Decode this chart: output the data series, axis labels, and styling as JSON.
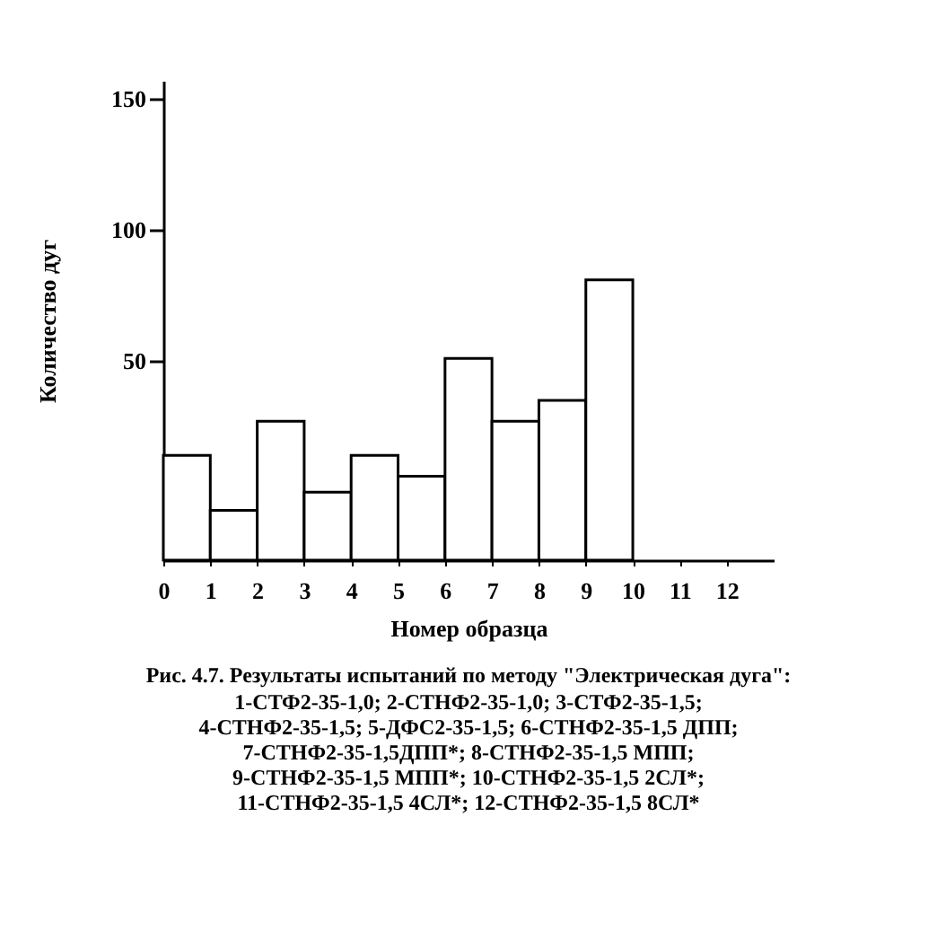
{
  "chart_data": {
    "type": "bar",
    "title": "Рис. 4.7. Результаты испытаний по методу \"Электрическая дуга\":",
    "annotations": [
      "1-СТФ2-35-1,0; 2-СТНФ2-35-1,0; 3-СТФ2-35-1,5;",
      "4-СТНФ2-35-1,5; 5-ДФС2-35-1,5; 6-СТНФ2-35-1,5 ДПП;",
      "7-СТНФ2-35-1,5ДПП*; 8-СТНФ2-35-1,5 МПП;",
      "9-СТНФ2-35-1,5 МПП*; 10-СТНФ2-35-1,5 2СЛ*;",
      "11-СТНФ2-35-1,5 4СЛ*; 12-СТНФ2-35-1,5 8СЛ*"
    ],
    "xlabel": "Номер образца",
    "ylabel": "Количество дуг",
    "x": [
      0.5,
      1.5,
      2.5,
      3.5,
      4.5,
      5.5,
      6.5,
      7.5,
      8.5,
      9.5
    ],
    "base": [
      -26,
      -26,
      -26,
      -26,
      -26,
      -26,
      -26,
      -26,
      -26,
      -26
    ],
    "values": [
      40,
      19,
      53,
      26,
      40,
      32,
      77,
      53,
      61,
      107
    ],
    "color": "#ffffff",
    "xlim": [
      0,
      13
    ],
    "xticks": [
      0,
      1,
      2,
      3,
      4,
      5,
      6,
      7,
      8,
      9,
      10,
      11,
      12
    ],
    "ylim": [
      -26,
      157
    ],
    "yticks": [
      50,
      100,
      150
    ],
    "grid": false
  }
}
